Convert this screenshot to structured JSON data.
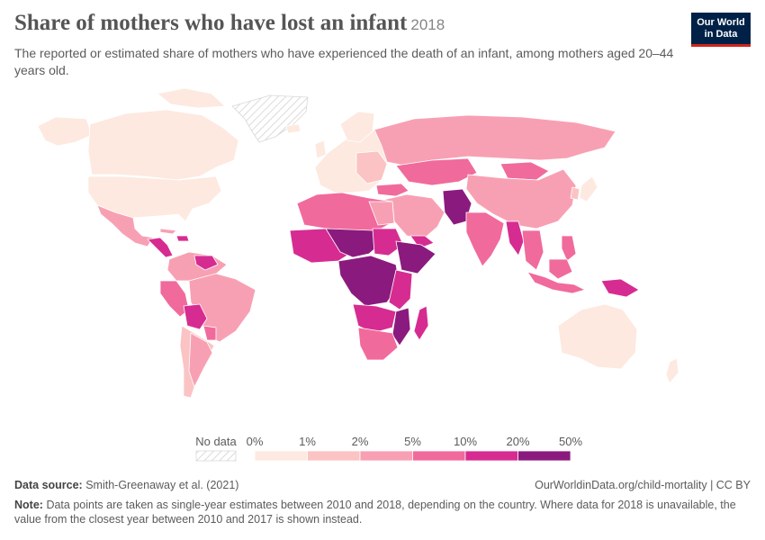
{
  "header": {
    "title": "Share of mothers who have lost an infant",
    "year": "2018",
    "subtitle": "The reported or estimated share of mothers who have experienced the death of an infant, among mothers aged 20–44 years old."
  },
  "logo": {
    "line1": "Our World",
    "line2": "in Data"
  },
  "legend": {
    "no_data_label": "No data",
    "ticks": [
      "0%",
      "1%",
      "2%",
      "5%",
      "10%",
      "20%",
      "50%"
    ],
    "colors": [
      "#fde9e0",
      "#fbc3c3",
      "#f8a0b3",
      "#f16a9c",
      "#d62c91",
      "#8b1a7e"
    ]
  },
  "map_colors": {
    "ocean": "#ffffff",
    "border": "#ffffff"
  },
  "footer": {
    "source_label": "Data source:",
    "source": "Smith-Greenaway et al. (2021)",
    "url": "OurWorldinData.org/child-mortality | CC BY",
    "note_label": "Note:",
    "note": "Data points are taken as single-year estimates between 2010 and 2018, depending on the country. Where data for 2018 is unavailable, the value from the closest year between 2010 and 2017 is shown instead."
  }
}
